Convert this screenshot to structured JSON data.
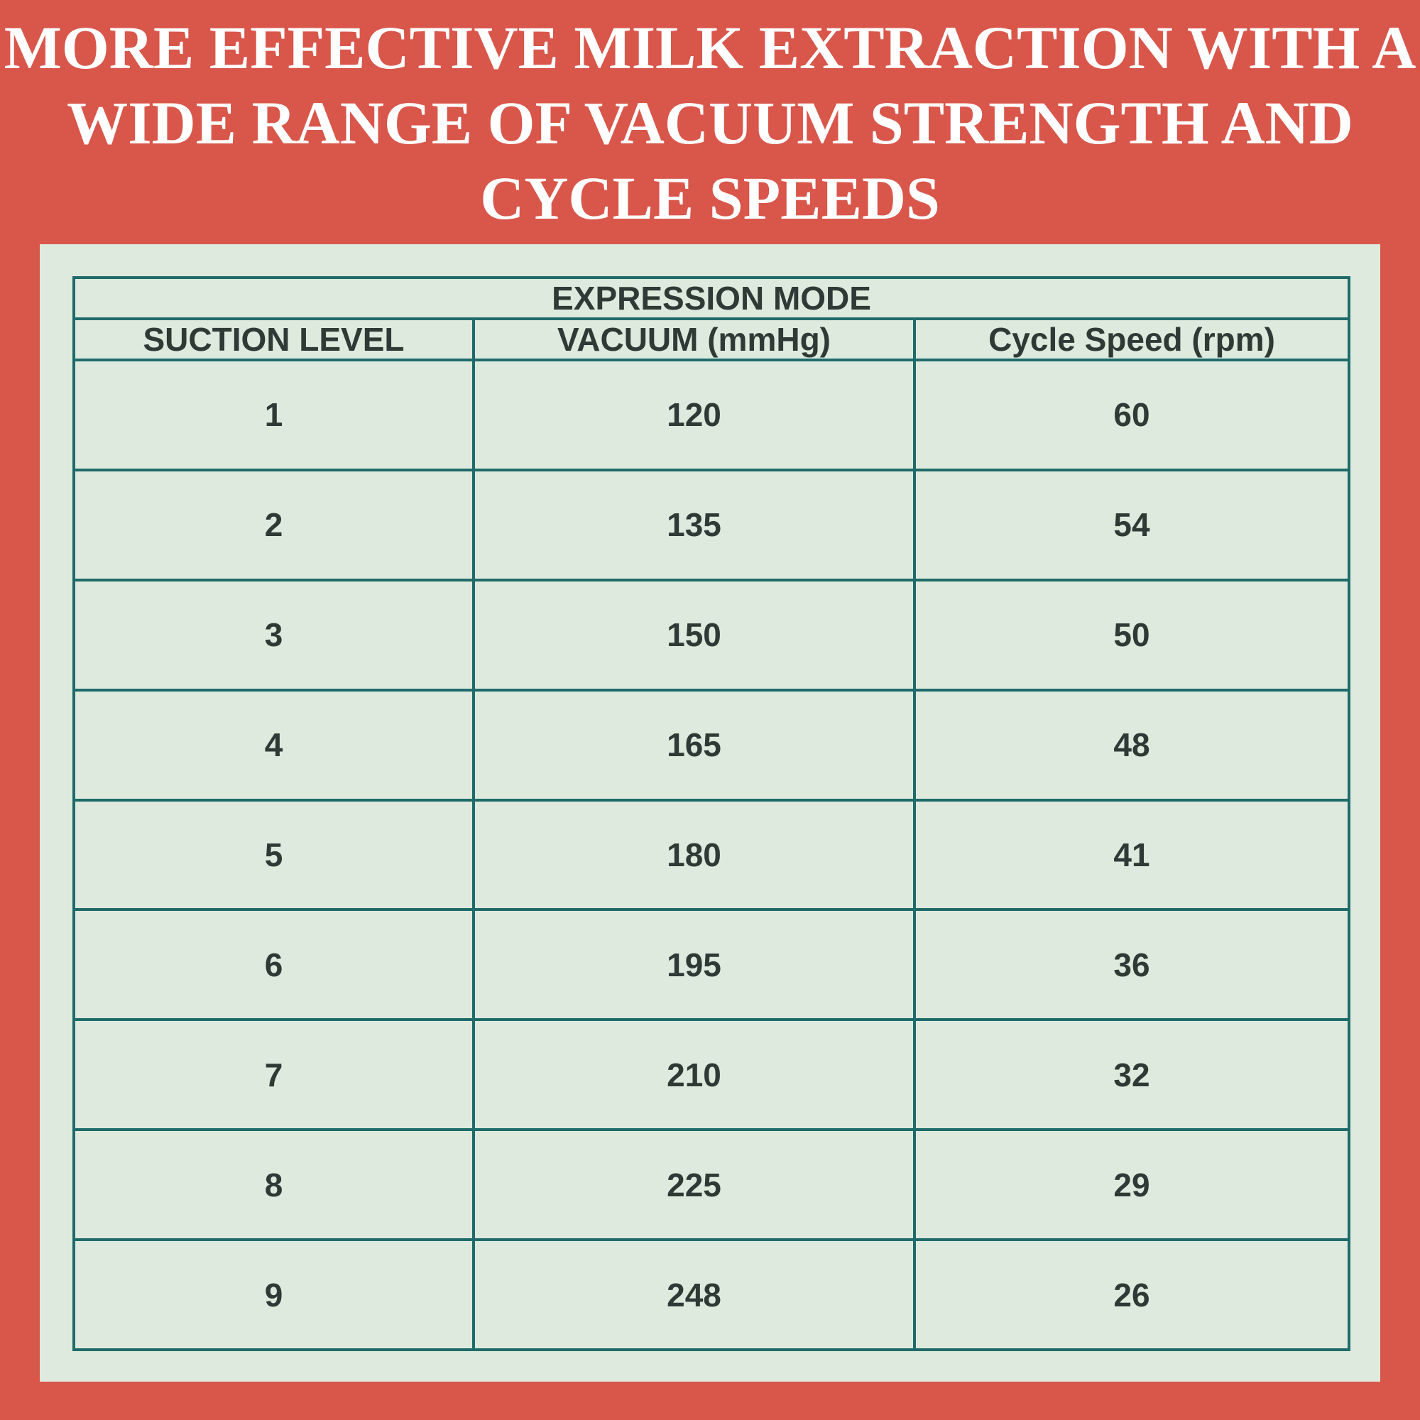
{
  "title": "MORE EFFECTIVE MILK EXTRACTION WITH A WIDE RANGE OF VACUUM STRENGTH AND CYCLE SPEEDS",
  "table": {
    "title": "EXPRESSION MODE",
    "columns": [
      "SUCTION LEVEL",
      "VACUUM (mmHg)",
      "Cycle Speed (rpm)"
    ],
    "rows": [
      [
        1,
        120,
        60
      ],
      [
        2,
        135,
        54
      ],
      [
        3,
        150,
        50
      ],
      [
        4,
        165,
        48
      ],
      [
        5,
        180,
        41
      ],
      [
        6,
        195,
        36
      ],
      [
        7,
        210,
        32
      ],
      [
        8,
        225,
        29
      ],
      [
        9,
        248,
        26
      ]
    ]
  }
}
